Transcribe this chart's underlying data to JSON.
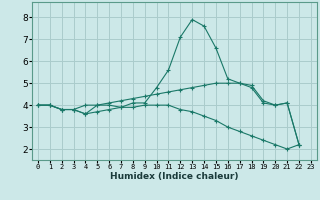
{
  "xlabel": "Humidex (Indice chaleur)",
  "ylabel": "",
  "background_color": "#cce8e8",
  "grid_color": "#aacccc",
  "line_color": "#1a7868",
  "xlim": [
    -0.5,
    23.5
  ],
  "ylim": [
    1.5,
    8.7
  ],
  "xticks": [
    0,
    1,
    2,
    3,
    4,
    5,
    6,
    7,
    8,
    9,
    10,
    11,
    12,
    13,
    14,
    15,
    16,
    17,
    18,
    19,
    20,
    21,
    22,
    23
  ],
  "yticks": [
    2,
    3,
    4,
    5,
    6,
    7,
    8
  ],
  "series": [
    [
      4.0,
      4.0,
      3.8,
      3.8,
      3.6,
      4.0,
      4.0,
      3.9,
      4.1,
      4.1,
      4.8,
      5.6,
      7.1,
      7.9,
      7.6,
      6.6,
      5.2,
      5.0,
      4.8,
      4.1,
      4.0,
      4.1,
      2.2
    ],
    [
      4.0,
      4.0,
      3.8,
      3.8,
      4.0,
      4.0,
      4.1,
      4.2,
      4.3,
      4.4,
      4.5,
      4.6,
      4.7,
      4.8,
      4.9,
      5.0,
      5.0,
      5.0,
      4.9,
      4.2,
      4.0,
      4.1,
      2.2
    ],
    [
      4.0,
      4.0,
      3.8,
      3.8,
      3.6,
      3.7,
      3.8,
      3.9,
      3.9,
      4.0,
      4.0,
      4.0,
      3.8,
      3.7,
      3.5,
      3.3,
      3.0,
      2.8,
      2.6,
      2.4,
      2.2,
      2.0,
      2.2
    ]
  ],
  "x_values": [
    0,
    1,
    2,
    3,
    4,
    5,
    6,
    7,
    8,
    9,
    10,
    11,
    12,
    13,
    14,
    15,
    16,
    17,
    18,
    19,
    20,
    21,
    22
  ]
}
